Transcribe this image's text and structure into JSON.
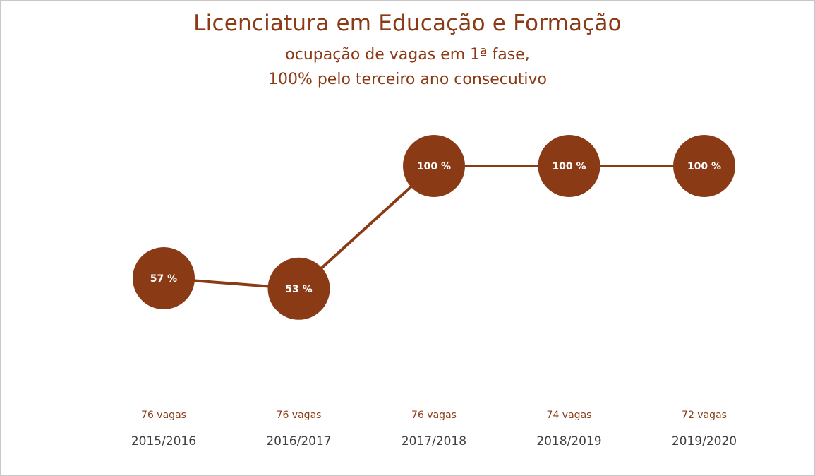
{
  "chart_data": {
    "type": "line",
    "title": "Licenciatura em Educação e Formação",
    "subtitle_lines": [
      "ocupação de vagas em 1ª fase,",
      "100% pelo terceiro ano consecutivo"
    ],
    "categories": [
      "2015/2016",
      "2016/2017",
      "2017/2018",
      "2018/2019",
      "2019/2020"
    ],
    "values": [
      57,
      53,
      100,
      100,
      100
    ],
    "data_labels": [
      "57 %",
      "53 %",
      "100 %",
      "100 %",
      "100 %"
    ],
    "vagas": [
      "76 vagas",
      "76 vagas",
      "76 vagas",
      "74 vagas",
      "72 vagas"
    ],
    "ylim": [
      0,
      100
    ],
    "grid": false,
    "legend": "none",
    "colors": {
      "line": "#8b3a16",
      "marker": "#8b3a16",
      "title": "#8b3a16",
      "year": "#404040",
      "marker_text": "#ffffff"
    }
  }
}
